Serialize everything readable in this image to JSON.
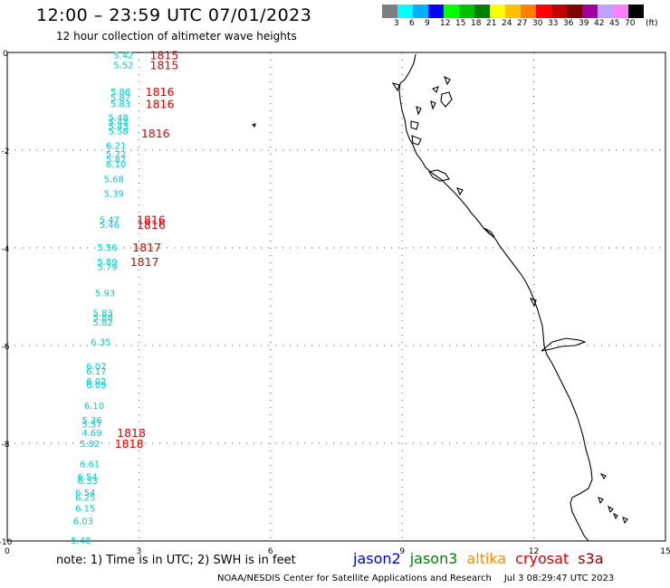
{
  "header": {
    "title": "12:00 – 23:59 UTC 07/01/2023",
    "subtitle": "12 hour collection of altimeter wave heights"
  },
  "colorbar": {
    "unit": "(ft)",
    "ticks": [
      "3",
      "6",
      "9",
      "12",
      "15",
      "18",
      "21",
      "24",
      "27",
      "30",
      "33",
      "36",
      "39",
      "42",
      "45",
      "70"
    ],
    "colors": [
      "#7f7f7f",
      "#00ffff",
      "#00b0ff",
      "#0000ff",
      "#00ff00",
      "#00c000",
      "#008000",
      "#ffff00",
      "#ffc000",
      "#ff8000",
      "#ff0000",
      "#c00000",
      "#800000",
      "#a000a0",
      "#c0a0ff",
      "#ff80ff",
      "#000000"
    ]
  },
  "axes": {
    "x_ticks": [
      "0",
      "3",
      "6",
      "9",
      "12",
      "15"
    ],
    "y_ticks": [
      "0",
      "-2",
      "-4",
      "-6",
      "-8",
      "-10"
    ]
  },
  "track": {
    "swh": [
      {
        "lat": -0.05,
        "lon": 2.42,
        "v": "5.42"
      },
      {
        "lat": -0.25,
        "lon": 2.42,
        "v": "5.52"
      },
      {
        "lat": -0.8,
        "lon": 2.35,
        "v": "5.86"
      },
      {
        "lat": -0.92,
        "lon": 2.35,
        "v": "5.87"
      },
      {
        "lat": -1.05,
        "lon": 2.35,
        "v": "5.83"
      },
      {
        "lat": -1.32,
        "lon": 2.3,
        "v": "5.48"
      },
      {
        "lat": -1.42,
        "lon": 2.3,
        "v": "5.43"
      },
      {
        "lat": -1.5,
        "lon": 2.3,
        "v": "5.43"
      },
      {
        "lat": -1.6,
        "lon": 2.3,
        "v": "5.58"
      },
      {
        "lat": -1.9,
        "lon": 2.25,
        "v": "6.21"
      },
      {
        "lat": -2.07,
        "lon": 2.25,
        "v": "5.72"
      },
      {
        "lat": -2.18,
        "lon": 2.25,
        "v": "5.87"
      },
      {
        "lat": -2.28,
        "lon": 2.25,
        "v": "6.10"
      },
      {
        "lat": -2.58,
        "lon": 2.2,
        "v": "5.68"
      },
      {
        "lat": -2.88,
        "lon": 2.2,
        "v": "5.39"
      },
      {
        "lat": -3.42,
        "lon": 2.1,
        "v": "5.47"
      },
      {
        "lat": -3.52,
        "lon": 2.1,
        "v": "5.46"
      },
      {
        "lat": -3.98,
        "lon": 2.05,
        "v": "5.56"
      },
      {
        "lat": -4.28,
        "lon": 2.05,
        "v": "5.89"
      },
      {
        "lat": -4.38,
        "lon": 2.05,
        "v": "5.79"
      },
      {
        "lat": -4.92,
        "lon": 2.0,
        "v": "5.93"
      },
      {
        "lat": -5.32,
        "lon": 1.95,
        "v": "5.83"
      },
      {
        "lat": -5.42,
        "lon": 1.95,
        "v": "5.88"
      },
      {
        "lat": -5.52,
        "lon": 1.95,
        "v": "5.82"
      },
      {
        "lat": -5.92,
        "lon": 1.9,
        "v": "6.35"
      },
      {
        "lat": -6.42,
        "lon": 1.8,
        "v": "6.07"
      },
      {
        "lat": -6.52,
        "lon": 1.8,
        "v": "6.17"
      },
      {
        "lat": -6.72,
        "lon": 1.8,
        "v": "6.02"
      },
      {
        "lat": -6.8,
        "lon": 1.8,
        "v": "6.09"
      },
      {
        "lat": -7.22,
        "lon": 1.75,
        "v": "6.10"
      },
      {
        "lat": -7.52,
        "lon": 1.7,
        "v": "5.36"
      },
      {
        "lat": -7.6,
        "lon": 1.7,
        "v": "5.57"
      },
      {
        "lat": -7.78,
        "lon": 1.7,
        "v": "4.69"
      },
      {
        "lat": -8.0,
        "lon": 1.65,
        "v": "5.82"
      },
      {
        "lat": -8.42,
        "lon": 1.65,
        "v": "6.61"
      },
      {
        "lat": -8.68,
        "lon": 1.6,
        "v": "6.54"
      },
      {
        "lat": -8.76,
        "lon": 1.6,
        "v": "6.33"
      },
      {
        "lat": -9.0,
        "lon": 1.55,
        "v": "6.54"
      },
      {
        "lat": -9.1,
        "lon": 1.55,
        "v": "6.25"
      },
      {
        "lat": -9.32,
        "lon": 1.55,
        "v": "6.15"
      },
      {
        "lat": -9.58,
        "lon": 1.5,
        "v": "6.03"
      },
      {
        "lat": -9.98,
        "lon": 1.45,
        "v": "5.48"
      }
    ],
    "times": [
      {
        "lat": -0.05,
        "lon": 3.25,
        "v": "1815"
      },
      {
        "lat": -0.25,
        "lon": 3.25,
        "v": "1815"
      },
      {
        "lat": -0.8,
        "lon": 3.15,
        "v": "1816"
      },
      {
        "lat": -1.05,
        "lon": 3.15,
        "v": "1816"
      },
      {
        "lat": -1.65,
        "lon": 3.05,
        "v": "1816"
      },
      {
        "lat": -3.42,
        "lon": 2.95,
        "v": "1816"
      },
      {
        "lat": -3.52,
        "lon": 2.95,
        "v": "1816"
      },
      {
        "lat": -3.98,
        "lon": 2.85,
        "v": "1817"
      },
      {
        "lat": -4.28,
        "lon": 2.8,
        "v": "1817"
      },
      {
        "lat": -7.78,
        "lon": 2.5,
        "v": "1818"
      },
      {
        "lat": -8.0,
        "lon": 2.45,
        "v": "1818"
      }
    ]
  },
  "footer": {
    "note": "note:  1) Time is in UTC; 2) SWH is in feet",
    "satellites": [
      {
        "name": "jason2",
        "color": "#0000cc"
      },
      {
        "name": "jason3",
        "color": "#008000"
      },
      {
        "name": "altika",
        "color": "#ff8c00"
      },
      {
        "name": "cryosat",
        "color": "#dd0000"
      },
      {
        "name": "s3a",
        "color": "#880000"
      }
    ],
    "credit": "NOAA/NESDIS Center for Satellite Applications and Research",
    "timestamp": "Jul  3 08:29:47 UTC 2023"
  }
}
